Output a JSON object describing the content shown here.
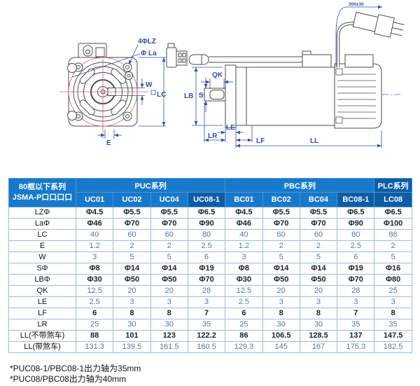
{
  "diagram": {
    "front_view": {
      "labels": {
        "bolt_holes": "4ΦLZ",
        "pilot_circle": "Φ La",
        "keyway_width": "W",
        "frame_size": "LC",
        "key_offset": "E"
      }
    },
    "side_view": {
      "labels": {
        "key_length": "QK",
        "shaft_dia": "S",
        "body_dia": "LB",
        "flange_thickness": "LE",
        "shaft_length": "LR",
        "front_length": "LF",
        "total_length": "LL",
        "cable_length": "300±30"
      }
    }
  },
  "table": {
    "corner": {
      "line1": "80框以下系列",
      "line2": "JSMA-P口口口口"
    },
    "groups": [
      {
        "label": "PUC系列",
        "span": 4,
        "dark": false
      },
      {
        "label": "PBC系列",
        "span": 4,
        "dark": false
      },
      {
        "label": "PLC系列",
        "span": 1,
        "dark": true
      }
    ],
    "columns": [
      {
        "label": "UC01",
        "dark": false
      },
      {
        "label": "UC02",
        "dark": false
      },
      {
        "label": "UC04",
        "dark": false
      },
      {
        "label": "UC08-1",
        "dark": true
      },
      {
        "label": "BC01",
        "dark": false
      },
      {
        "label": "BC02",
        "dark": false
      },
      {
        "label": "BC04",
        "dark": false
      },
      {
        "label": "BC08-1",
        "dark": true
      },
      {
        "label": "LC08",
        "dark": true
      }
    ],
    "rows": [
      {
        "label": "LZΦ",
        "tone": "dark",
        "values": [
          "Φ4.5",
          "Φ5.5",
          "Φ5.5",
          "Φ6.5",
          "Φ4.5",
          "Φ5.5",
          "Φ5.5",
          "Φ6.5",
          "Φ6.5"
        ]
      },
      {
        "label": "LaΦ",
        "tone": "dark",
        "values": [
          "Φ46",
          "Φ70",
          "Φ70",
          "Φ90",
          "Φ46",
          "Φ70",
          "Φ70",
          "Φ90",
          "Φ100"
        ]
      },
      {
        "label": "LC",
        "tone": "blue",
        "values": [
          "40",
          "60",
          "60",
          "80",
          "40",
          "60",
          "60",
          "80",
          "86"
        ]
      },
      {
        "label": "E",
        "tone": "blue",
        "values": [
          "1.2",
          "2",
          "2",
          "2.5",
          "1.2",
          "2",
          "2",
          "2.5",
          "2"
        ]
      },
      {
        "label": "W",
        "tone": "blue",
        "values": [
          "3",
          "5",
          "5",
          "6",
          "3",
          "5",
          "5",
          "6",
          "5"
        ]
      },
      {
        "label": "SΦ",
        "tone": "dark",
        "values": [
          "Φ8",
          "Φ14",
          "Φ14",
          "Φ19",
          "Φ8",
          "Φ14",
          "Φ14",
          "Φ19",
          "Φ16"
        ]
      },
      {
        "label": "LBΦ",
        "tone": "dark",
        "values": [
          "Φ30",
          "Φ50",
          "Φ50",
          "Φ70",
          "Φ30",
          "Φ50",
          "Φ50",
          "Φ70",
          "Φ80"
        ]
      },
      {
        "label": "QK",
        "tone": "blue",
        "values": [
          "12.5",
          "20",
          "20",
          "28",
          "12.5",
          "20",
          "20",
          "28",
          "25"
        ]
      },
      {
        "label": "LE",
        "tone": "blue",
        "values": [
          "2.5",
          "3",
          "3",
          "3",
          "2.5",
          "3",
          "3",
          "3",
          "3"
        ]
      },
      {
        "label": "LF",
        "tone": "dark",
        "values": [
          "6",
          "8",
          "8",
          "7",
          "6",
          "8",
          "8",
          "7",
          "8"
        ]
      },
      {
        "label": "LR",
        "tone": "blue",
        "values": [
          "25",
          "30",
          "30",
          "35",
          "25",
          "30",
          "30",
          "35",
          "35"
        ]
      },
      {
        "label": "LL(不带煞车)",
        "tone": "dark",
        "values": [
          "88",
          "101",
          "123",
          "122.2",
          "86",
          "106.5",
          "128.5",
          "137",
          "147.5"
        ]
      },
      {
        "label": "LL(带煞车)",
        "tone": "blue",
        "values": [
          "131.3",
          "139.5",
          "161.5",
          "160.5",
          "129.3",
          "145",
          "167",
          "175.3",
          "182.5"
        ]
      }
    ]
  },
  "footnotes": [
    "*PUC08-1/PBC08-1出力轴为35mm",
    "*PUC08/PBC08出力轴为40mm"
  ],
  "colors": {
    "header_blue": "#1779cb",
    "header_dark": "#0d5ca5",
    "border_blue": "#96bede",
    "value_dark": "#222222",
    "value_blue": "#4e79ab",
    "dim_blue": "#2f4fae",
    "line_gray": "#4b4b4b",
    "center_red": "#d25c5c"
  }
}
